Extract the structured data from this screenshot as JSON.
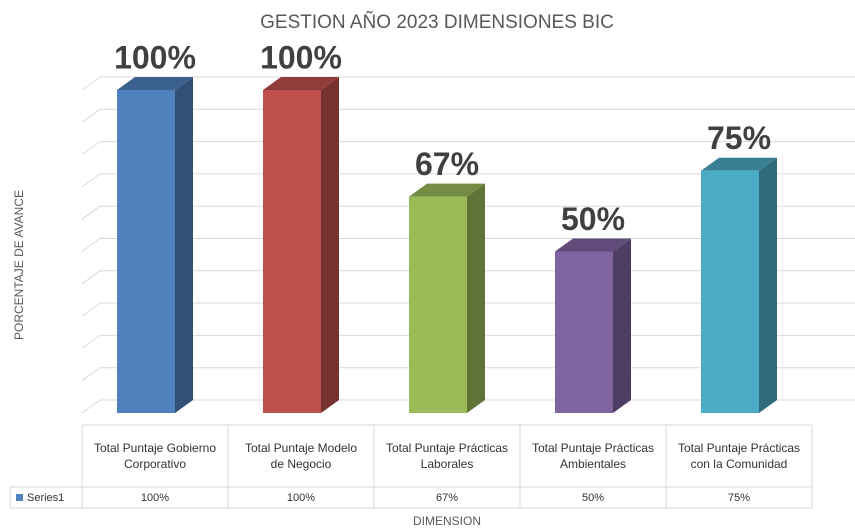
{
  "chart_data": {
    "type": "bar3d",
    "title": "GESTION AÑO 2023 DIMENSIONES BIC",
    "y_axis_label": "PORCENTAJE DE AVANCE",
    "x_axis_label": "DIMENSION",
    "categories": [
      "Total Puntaje Gobierno Corporativo",
      "Total Puntaje Modelo de Negocio",
      "Total Puntaje Prácticas Laborales",
      "Total Puntaje Prácticas Ambientales",
      "Total Puntaje Prácticas con la Comunidad"
    ],
    "series": [
      {
        "name": "Series1",
        "color": "#4f81bd",
        "colors": [
          "#4f81bd",
          "#c0504d",
          "#9bbb59",
          "#8064a2",
          "#4bacc6"
        ],
        "values": [
          100,
          100,
          67,
          50,
          75
        ],
        "value_labels": [
          "100%",
          "100%",
          "67%",
          "50%",
          "75%"
        ]
      }
    ],
    "ylim": [
      0,
      100
    ],
    "yticks": [
      0,
      10,
      20,
      30,
      40,
      50,
      60,
      70,
      80,
      90,
      100
    ],
    "grid": true,
    "data_table": true
  }
}
